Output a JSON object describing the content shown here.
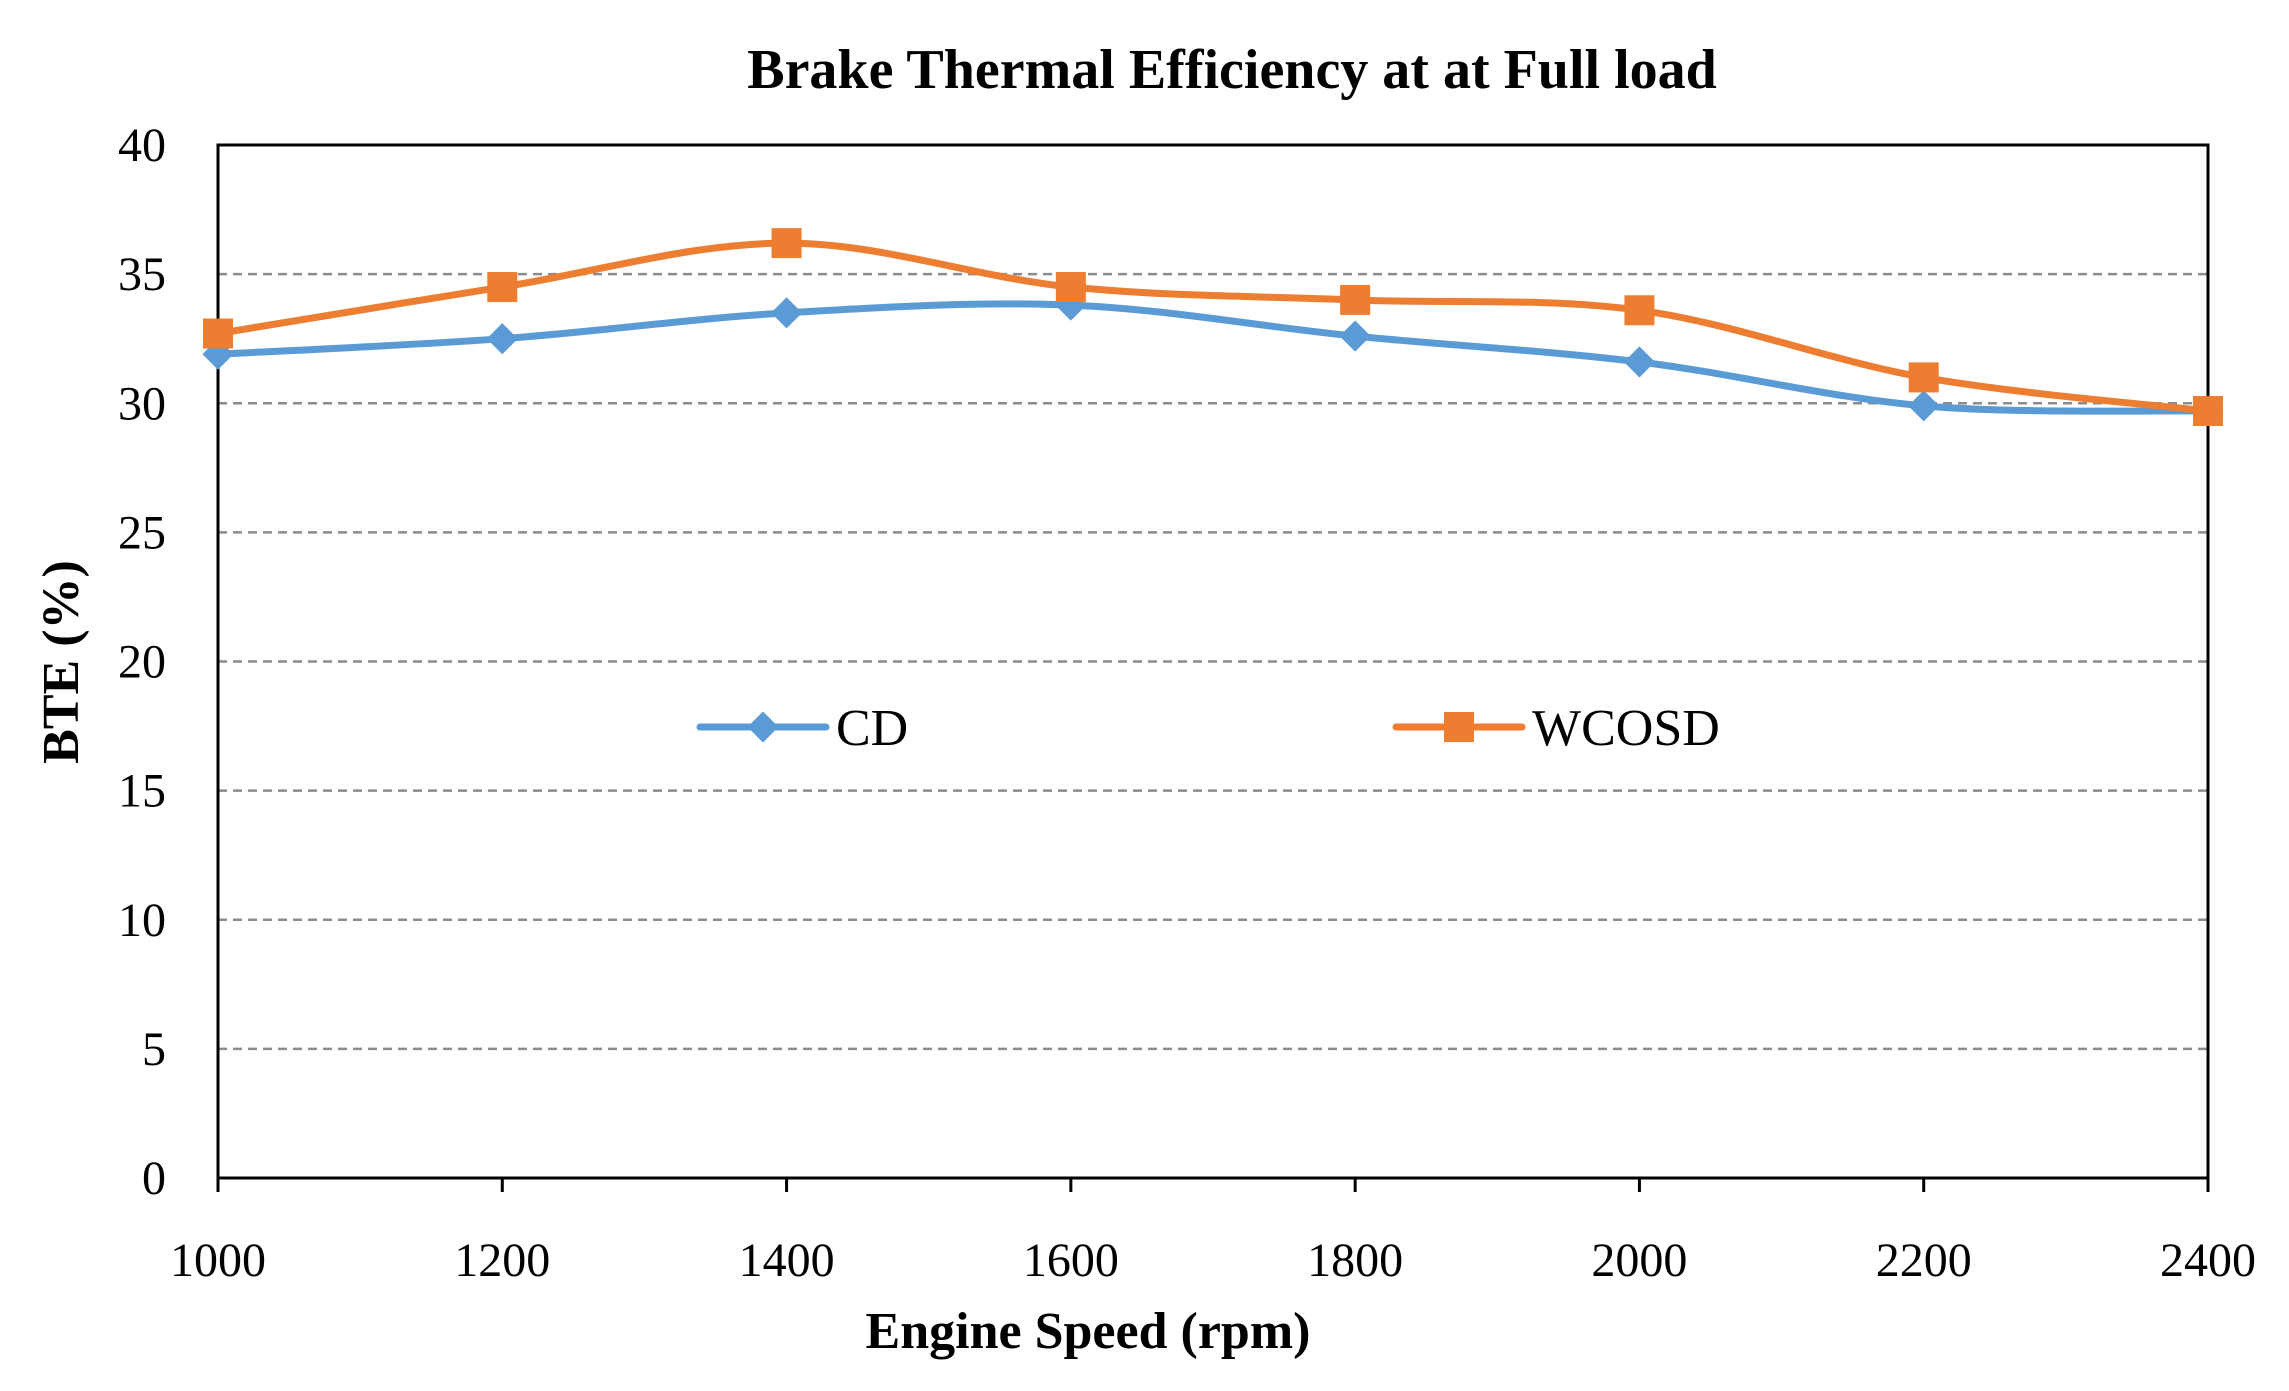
{
  "chart_data": {
    "type": "line",
    "title": "Brake Thermal Efficiency at at Full load",
    "xlabel": "Engine Speed (rpm)",
    "ylabel": "BTE (%)",
    "x": [
      1000,
      1200,
      1400,
      1600,
      1800,
      2000,
      2200,
      2400
    ],
    "x_tick_labels": [
      "1000",
      "1200",
      "1400",
      "1600",
      "1800",
      "2000",
      "2200",
      "2400"
    ],
    "y_tick_labels": [
      "0",
      "5",
      "10",
      "15",
      "20",
      "25",
      "30",
      "35",
      "40"
    ],
    "xlim": [
      1000,
      2400
    ],
    "ylim": [
      0,
      40
    ],
    "y_major_unit": 5,
    "grid": "horizontal dashed",
    "legend_position": "center",
    "series": [
      {
        "name": "CD",
        "marker": "diamond",
        "color": "#5B9BD5",
        "values": [
          31.9,
          32.5,
          33.5,
          33.8,
          32.6,
          31.6,
          29.9,
          29.7
        ]
      },
      {
        "name": "WCOSD",
        "marker": "square",
        "color": "#ED7D31",
        "values": [
          32.7,
          34.5,
          36.2,
          34.5,
          34.0,
          33.6,
          31.0,
          29.7
        ]
      }
    ]
  }
}
